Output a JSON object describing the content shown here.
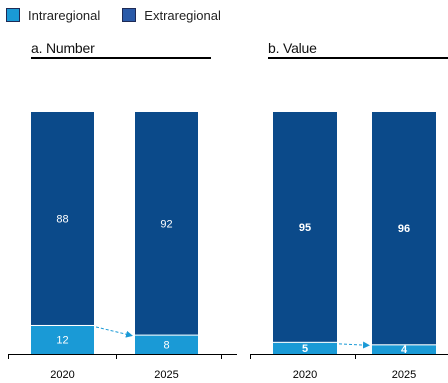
{
  "legend": {
    "items": [
      {
        "label": "Intraregional",
        "color": "#1a9ad6"
      },
      {
        "label": "Extraregional",
        "color": "#0b4a8a"
      }
    ]
  },
  "chart_data": [
    {
      "type": "bar",
      "stacked": true,
      "title": "a. Number",
      "categories": [
        "2020",
        "2025"
      ],
      "series": [
        {
          "name": "Intraregional",
          "values": [
            12,
            8
          ],
          "color": "#1a9ad6"
        },
        {
          "name": "Extraregional",
          "values": [
            88,
            92
          ],
          "color": "#0b4a8a"
        }
      ],
      "ylim": [
        0,
        100
      ],
      "data_label_style": "normal",
      "annotation": "arrow from 2020 intraregional to 2025 intraregional"
    },
    {
      "type": "bar",
      "stacked": true,
      "title": "b. Value",
      "categories": [
        "2020",
        "2025"
      ],
      "series": [
        {
          "name": "Intraregional",
          "values": [
            5,
            4
          ],
          "color": "#1a9ad6"
        },
        {
          "name": "Extraregional",
          "values": [
            95,
            96
          ],
          "color": "#0b4a8a"
        }
      ],
      "ylim": [
        0,
        100
      ],
      "data_label_style": "bold",
      "annotation": "arrow from 2020 intraregional to 2025 intraregional"
    }
  ]
}
